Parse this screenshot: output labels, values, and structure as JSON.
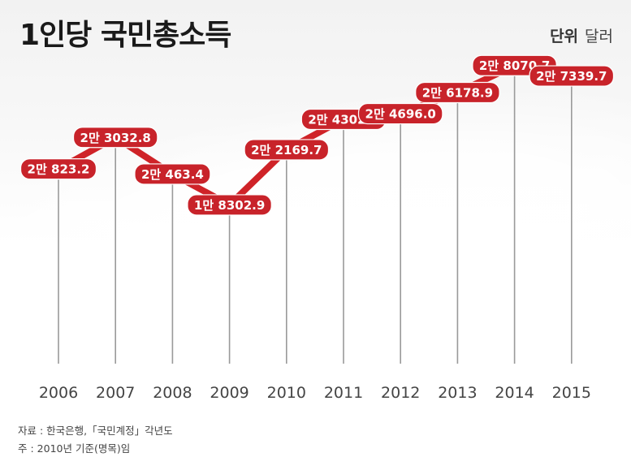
{
  "header": {
    "title": "1인당 국민총소득",
    "unit_label": "단위",
    "unit_value": "달러"
  },
  "footer": {
    "source": "자료 : 한국은행,「국민계정」각년도",
    "note": "주 : 2010년 기준(명목)임"
  },
  "colors": {
    "series": "#cf2328",
    "label_fill": "#c8232a",
    "drop_line": "#9a9a9a"
  },
  "chart_data": {
    "type": "line",
    "title": "1인당 국민총소득",
    "categories": [
      "2006",
      "2007",
      "2008",
      "2009",
      "2010",
      "2011",
      "2012",
      "2013",
      "2014",
      "2015"
    ],
    "values": [
      20823.2,
      23032.8,
      20463.4,
      18302.9,
      22169.7,
      24302.1,
      24696.0,
      26178.9,
      28070.7,
      27339.7
    ],
    "data_labels": [
      "2만 823.2",
      "2만 3032.8",
      "2만 463.4",
      "1만 8302.9",
      "2만 2169.7",
      "2만 4302.1",
      "2만 4696.0",
      "2만 6178.9",
      "2만 8070.7",
      "2만 7339.7"
    ],
    "grid": false,
    "legend": "none"
  }
}
